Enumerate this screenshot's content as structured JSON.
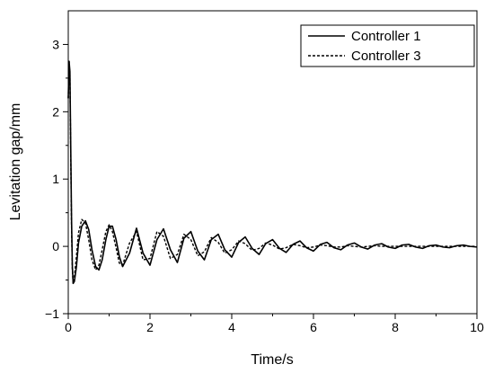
{
  "chart_data": {
    "type": "line",
    "xlabel": "Time/s",
    "ylabel": "Levitation gap/mm",
    "xlim": [
      0,
      10
    ],
    "ylim": [
      -1,
      3.5
    ],
    "xticks": [
      0,
      2,
      4,
      6,
      8,
      10
    ],
    "yticks": [
      -1,
      0,
      1,
      2,
      3
    ],
    "xtick_labels": [
      "0",
      "2",
      "4",
      "6",
      "8",
      "10"
    ],
    "ytick_labels": [
      "−1",
      "0",
      "1",
      "2",
      "3"
    ],
    "grid": false,
    "legend_position": "top-right",
    "series": [
      {
        "name": "Controller 1",
        "style": "solid",
        "color": "#000000",
        "x": [
          0,
          0.02,
          0.04,
          0.06,
          0.08,
          0.1,
          0.12,
          0.15,
          0.2,
          0.25,
          0.33,
          0.42,
          0.5,
          0.58,
          0.67,
          0.75,
          0.83,
          0.92,
          1.0,
          1.08,
          1.17,
          1.25,
          1.33,
          1.5,
          1.67,
          1.83,
          2.0,
          2.17,
          2.33,
          2.5,
          2.67,
          2.83,
          3.0,
          3.17,
          3.33,
          3.5,
          3.67,
          3.83,
          4.0,
          4.17,
          4.33,
          4.5,
          4.67,
          4.83,
          5.0,
          5.17,
          5.33,
          5.5,
          5.67,
          5.83,
          6.0,
          6.17,
          6.33,
          6.5,
          6.67,
          6.83,
          7.0,
          7.17,
          7.33,
          7.5,
          7.67,
          7.83,
          8.0,
          8.17,
          8.33,
          8.5,
          8.67,
          8.83,
          9.0,
          9.17,
          9.33,
          9.5,
          9.67,
          9.83,
          10.0
        ],
        "y": [
          2.2,
          2.75,
          2.6,
          1.5,
          0.4,
          -0.3,
          -0.55,
          -0.52,
          -0.3,
          0.05,
          0.3,
          0.38,
          0.25,
          -0.05,
          -0.3,
          -0.35,
          -0.2,
          0.1,
          0.3,
          0.3,
          0.1,
          -0.15,
          -0.3,
          -0.1,
          0.27,
          -0.1,
          -0.28,
          0.1,
          0.26,
          -0.05,
          -0.24,
          0.12,
          0.22,
          -0.07,
          -0.2,
          0.1,
          0.18,
          -0.05,
          -0.16,
          0.06,
          0.14,
          -0.03,
          -0.12,
          0.04,
          0.1,
          -0.03,
          -0.09,
          0.03,
          0.08,
          -0.02,
          -0.07,
          0.03,
          0.06,
          -0.02,
          -0.05,
          0.02,
          0.05,
          -0.01,
          -0.04,
          0.02,
          0.04,
          -0.01,
          -0.03,
          0.02,
          0.03,
          -0.01,
          -0.03,
          0.01,
          0.02,
          -0.01,
          -0.02,
          0.01,
          0.02,
          0.0,
          -0.01
        ]
      },
      {
        "name": "Controller 3",
        "style": "dashed",
        "color": "#000000",
        "x": [
          0,
          0.02,
          0.04,
          0.06,
          0.08,
          0.1,
          0.12,
          0.15,
          0.2,
          0.25,
          0.33,
          0.42,
          0.5,
          0.58,
          0.67,
          0.75,
          0.83,
          0.92,
          1.0,
          1.08,
          1.17,
          1.25,
          1.33,
          1.5,
          1.67,
          1.83,
          2.0,
          2.17,
          2.33,
          2.5,
          2.67,
          2.83,
          3.0,
          3.17,
          3.33,
          3.5,
          3.67,
          3.83,
          4.0,
          4.17,
          4.33,
          4.5,
          4.67,
          4.83,
          5.0,
          5.17,
          5.33,
          5.5,
          5.67,
          5.83,
          6.0,
          6.17,
          6.33,
          6.5,
          6.67,
          6.83,
          7.0,
          7.17,
          7.33,
          7.5,
          7.67,
          7.83,
          8.0,
          8.17,
          8.33,
          8.5,
          8.67,
          8.83,
          9.0,
          9.17,
          9.33,
          9.5,
          9.67,
          9.83,
          10.0
        ],
        "y": [
          2.2,
          2.75,
          2.55,
          1.4,
          0.3,
          -0.35,
          -0.55,
          -0.45,
          -0.15,
          0.2,
          0.4,
          0.35,
          0.1,
          -0.2,
          -0.35,
          -0.28,
          -0.05,
          0.22,
          0.32,
          0.22,
          -0.02,
          -0.25,
          -0.28,
          0.05,
          0.22,
          -0.2,
          -0.18,
          0.22,
          0.15,
          -0.18,
          -0.12,
          0.18,
          0.1,
          -0.14,
          -0.08,
          0.13,
          0.06,
          -0.1,
          -0.05,
          0.08,
          0.04,
          -0.06,
          -0.03,
          0.05,
          0.02,
          -0.04,
          -0.02,
          0.03,
          0.01,
          -0.02,
          -0.01,
          0.02,
          0.01,
          -0.01,
          -0.01,
          0.01,
          0.0,
          -0.01,
          0.0,
          0.01,
          0.0,
          0.0,
          0.0,
          0.0,
          0.0,
          0.0,
          0.0,
          0.0,
          0.0,
          0.0,
          0.0,
          0.0,
          0.0,
          0.0,
          0.0
        ]
      }
    ]
  }
}
